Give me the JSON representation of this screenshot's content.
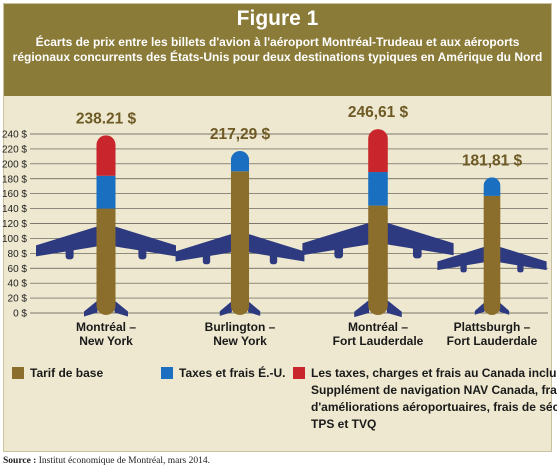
{
  "header": {
    "title": "Figure 1",
    "subtitle_line1": "Écarts de prix entre les billets d'avion à l'aéroport Montréal-Trudeau et aux aéroports",
    "subtitle_line2": "régionaux concurrents des États-Unis pour deux destinations typiques en Amérique du Nord"
  },
  "colors": {
    "header_bg": "#8b7b38",
    "panel_bg": "#ede8cf",
    "plane": "#2e3a80",
    "base_fare": "#8c6e2c",
    "us_taxes": "#1a6fc0",
    "canada_taxes": "#c8252c",
    "total_label": "#6e5a25"
  },
  "chart_data": {
    "type": "bar",
    "stacked": true,
    "categories": [
      [
        "Montréal –",
        "New York"
      ],
      [
        "Burlington –",
        "New York"
      ],
      [
        "Montréal –",
        "Fort Lauderdale"
      ],
      [
        "Plattsburgh –",
        "Fort Lauderdale"
      ]
    ],
    "totals": [
      "238.21 $",
      "217,29 $",
      "246,61 $",
      "181,81 $"
    ],
    "series": [
      {
        "name": "Tarif de base",
        "values": [
          140,
          190,
          144,
          157
        ]
      },
      {
        "name": "Taxes et frais É.-U.",
        "values": [
          44,
          27.29,
          45,
          24.81
        ]
      },
      {
        "name": "Les taxes, charges et frais au Canada incluent : Supplément de navigation NAV Canada, frais d'améliorations aéroportuaires, frais de sécurité, TPS et TVQ",
        "values": [
          54.21,
          0,
          57.61,
          0
        ]
      }
    ],
    "y_ticks": [
      "0 $",
      "20 $",
      "40 $",
      "60 $",
      "80 $",
      "100 $",
      "120 $",
      "140 $",
      "160 $",
      "180 $",
      "200 $",
      "220 $",
      "240 $"
    ],
    "ylim": [
      0,
      240
    ],
    "grid": true,
    "legend": [
      {
        "label": "Tarif de base"
      },
      {
        "label": "Taxes et frais É.-U."
      },
      {
        "label": "Les taxes, charges et frais au Canada incluent :",
        "lines": [
          "Supplément de navigation NAV Canada, frais",
          "d'améliorations aéroportuaires, frais de sécurité,",
          "TPS et TVQ"
        ]
      }
    ]
  },
  "source": {
    "label": "Source :",
    "text": "Institut économique de Montréal, mars 2014."
  }
}
